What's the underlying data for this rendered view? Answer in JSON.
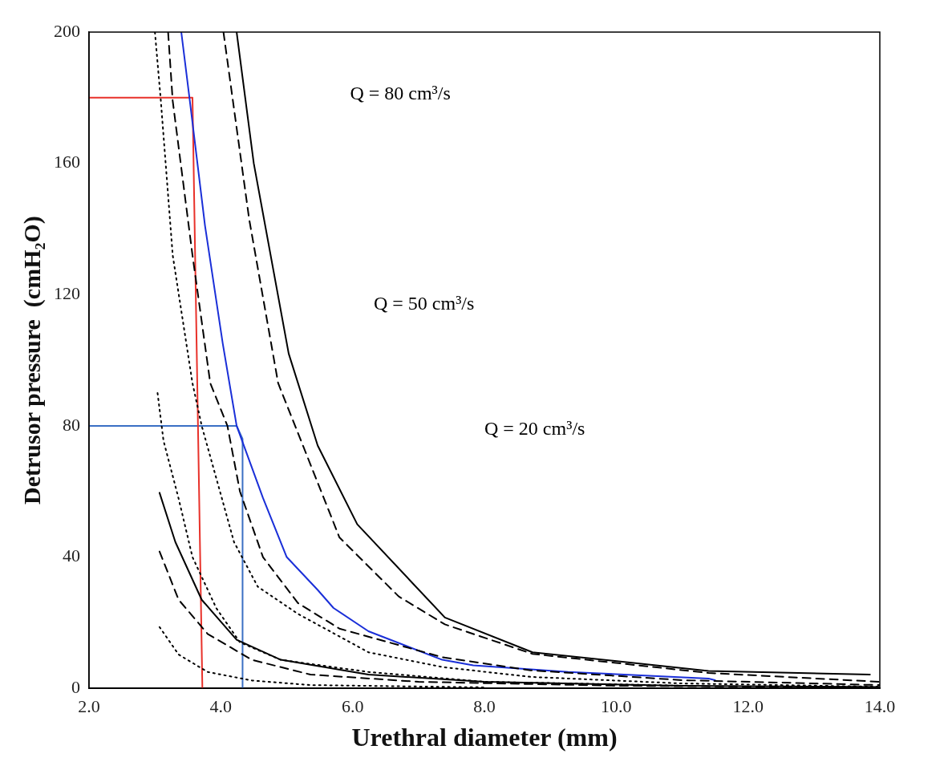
{
  "chart_data": {
    "type": "line",
    "xlabel": "Urethral diameter (mm)",
    "ylabel": "Detrusor pressure  (cmH₂O)",
    "xlim": [
      2,
      14
    ],
    "ylim": [
      0,
      200
    ],
    "xticks": [
      {
        "value": 2,
        "label": "2.0"
      },
      {
        "value": 4,
        "label": "4.0"
      },
      {
        "value": 6,
        "label": "6.0"
      },
      {
        "value": 8,
        "label": "8.0"
      },
      {
        "value": 10,
        "label": "10.0"
      },
      {
        "value": 12,
        "label": "12.0"
      },
      {
        "value": 14,
        "label": "14.0"
      }
    ],
    "yticks": [
      0,
      40,
      80,
      120,
      160,
      200
    ],
    "grid": false,
    "legend": false,
    "marker": "none",
    "annotations": [
      "Q = 80 cm³/s",
      "Q = 50 cm³/s",
      "Q = 20 cm³/s"
    ],
    "series": [
      {
        "color": "#000000",
        "line_style": "solid",
        "x": [
          4.24,
          4.5,
          5.03,
          5.47,
          6.07,
          7.4,
          8.73,
          11.4,
          13.85
        ],
        "values": [
          200,
          160,
          102,
          74,
          50,
          21.6,
          11,
          5.3,
          4.2
        ]
      },
      {
        "color": "#000000",
        "line_style": "dashed",
        "x": [
          4.04,
          4.43,
          4.87,
          5.8,
          6.7,
          7.4,
          8.73,
          11.4,
          14
        ],
        "values": [
          200,
          143,
          93,
          46,
          28,
          19.5,
          10.5,
          4.7,
          2
        ]
      },
      {
        "color": "#000000",
        "line_style": "dashed",
        "x": [
          3.2,
          3.27,
          3.57,
          3.84,
          4.1,
          4.29,
          4.64,
          5.17,
          5.8,
          7.36,
          8.7,
          11,
          14
        ],
        "values": [
          200,
          179,
          132,
          93,
          80,
          60,
          40,
          26,
          18.2,
          9.5,
          5.5,
          2.5,
          1
        ]
      },
      {
        "color": "#000000",
        "line_style": "dotted",
        "x": [
          3.0,
          3.09,
          3.27,
          3.57,
          3.71,
          3.89,
          4.2,
          4.56,
          5.17,
          6.24,
          7.36,
          8.7,
          11,
          14
        ],
        "values": [
          200,
          179,
          132,
          93,
          80,
          67,
          44.6,
          31,
          22.7,
          11,
          6.5,
          3.5,
          1.5,
          0.5
        ]
      },
      {
        "color": "#000000",
        "line_style": "dotted",
        "x": [
          3.04,
          3.13,
          3.36,
          3.57,
          3.93,
          4.29,
          4.91,
          6.24,
          8,
          11
        ],
        "values": [
          90,
          75.5,
          57.8,
          40,
          24.5,
          14,
          8.7,
          5,
          2,
          0.8
        ]
      },
      {
        "color": "#000000",
        "line_style": "solid",
        "x": [
          3.07,
          3.31,
          3.71,
          4.24,
          4.91,
          6.24,
          8,
          11,
          14
        ],
        "values": [
          59.6,
          44.6,
          27,
          14.8,
          8.7,
          4.2,
          2,
          0.8,
          0.4
        ]
      },
      {
        "color": "#000000",
        "line_style": "dashed",
        "x": [
          3.07,
          3.36,
          3.8,
          4.47,
          5.36,
          7,
          10,
          14
        ],
        "values": [
          41.7,
          27,
          16.6,
          8.7,
          4.2,
          2,
          0.8,
          0.3
        ]
      },
      {
        "color": "#000000",
        "line_style": "dotted",
        "x": [
          3.07,
          3.36,
          3.8,
          4.47,
          5.36,
          8
        ],
        "values": [
          18.7,
          10.3,
          5,
          2.4,
          1,
          0.3
        ]
      },
      {
        "color": "#1a2fd8",
        "line_style": "solid",
        "x": [
          3.4,
          3.53,
          3.76,
          4.03,
          4.24,
          4.64,
          5.0,
          5.47,
          5.71,
          6.24,
          7.36,
          7.83,
          9.27,
          11.4,
          11.5
        ],
        "values": [
          200,
          179,
          141,
          105,
          80,
          58,
          40,
          30,
          24.5,
          17.4,
          8.7,
          7,
          5,
          3,
          2.5
        ]
      },
      {
        "color": "#e8312a",
        "line_style": "solid",
        "x": [
          2,
          3.57,
          3.57,
          3.72
        ],
        "values": [
          180,
          180,
          180,
          0
        ]
      },
      {
        "color": "#3a6fc4",
        "line_style": "solid",
        "x": [
          2,
          4.24,
          4.33,
          4.33
        ],
        "values": [
          80,
          80,
          76,
          0
        ]
      }
    ]
  }
}
